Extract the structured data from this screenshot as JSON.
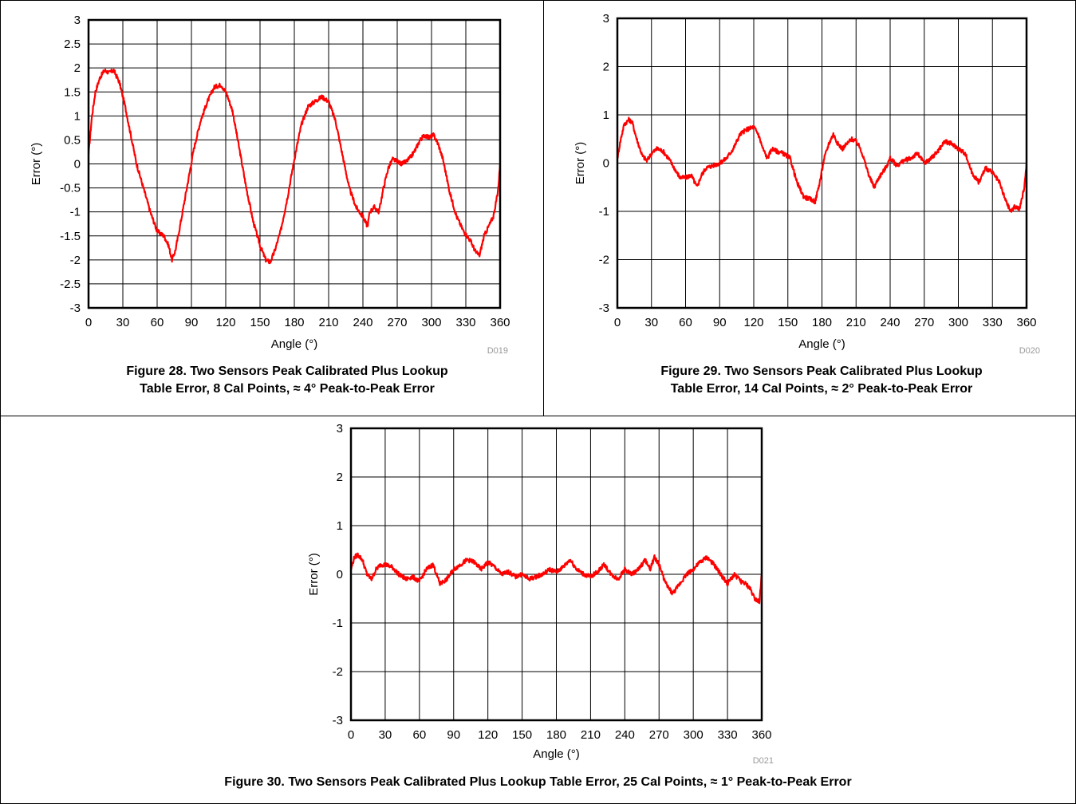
{
  "chart_data": [
    {
      "type": "line",
      "id": "D019",
      "caption_line1": "Figure 28. Two Sensors Peak Calibrated Plus Lookup",
      "caption_line2": "Table Error, 8 Cal Points, ≈ 4° Peak-to-Peak Error",
      "xlabel": "Angle (°)",
      "ylabel": "Error (°)",
      "xlim": [
        0,
        360
      ],
      "ylim": [
        -3,
        3
      ],
      "xticks": [
        "0",
        "30",
        "60",
        "90",
        "120",
        "150",
        "180",
        "210",
        "240",
        "270",
        "300",
        "330",
        "360"
      ],
      "yticks": [
        "3",
        "2.5",
        "2",
        "1.5",
        "1",
        "0.5",
        "0",
        "-0.5",
        "-1",
        "-1.5",
        "-2",
        "-2.5",
        "-3"
      ],
      "grid": true,
      "series_color": "#ff0000",
      "x": [
        0,
        3,
        6,
        10,
        14,
        18,
        22,
        27,
        32,
        37,
        42,
        48,
        54,
        60,
        66,
        70,
        73,
        76,
        80,
        86,
        92,
        98,
        104,
        110,
        116,
        121,
        126,
        132,
        138,
        144,
        150,
        155,
        159,
        163,
        168,
        174,
        180,
        186,
        192,
        198,
        204,
        210,
        216,
        222,
        228,
        234,
        240,
        244,
        246,
        250,
        254,
        258,
        262,
        266,
        270,
        274,
        278,
        282,
        286,
        290,
        294,
        298,
        302,
        306,
        310,
        316,
        322,
        328,
        334,
        339,
        342,
        346,
        350,
        354,
        358,
        360
      ],
      "y": [
        0.2,
        1.0,
        1.5,
        1.8,
        1.95,
        1.9,
        1.95,
        1.7,
        1.2,
        0.6,
        0.0,
        -0.5,
        -1.0,
        -1.4,
        -1.5,
        -1.7,
        -2.0,
        -1.8,
        -1.3,
        -0.5,
        0.3,
        0.9,
        1.3,
        1.6,
        1.65,
        1.45,
        1.1,
        0.3,
        -0.5,
        -1.2,
        -1.7,
        -2.0,
        -2.05,
        -1.8,
        -1.4,
        -0.7,
        0.1,
        0.8,
        1.2,
        1.3,
        1.4,
        1.3,
        0.9,
        0.2,
        -0.5,
        -0.9,
        -1.1,
        -1.3,
        -1.0,
        -0.9,
        -1.0,
        -0.5,
        -0.1,
        0.1,
        0.05,
        0.0,
        0.05,
        0.15,
        0.3,
        0.5,
        0.6,
        0.55,
        0.6,
        0.4,
        0.1,
        -0.6,
        -1.1,
        -1.4,
        -1.6,
        -1.85,
        -1.9,
        -1.5,
        -1.3,
        -1.1,
        -0.6,
        0.0
      ]
    },
    {
      "type": "line",
      "id": "D020",
      "caption_line1": "Figure 29. Two Sensors Peak Calibrated Plus Lookup",
      "caption_line2": "Table Error, 14 Cal Points, ≈ 2° Peak-to-Peak Error",
      "xlabel": "Angle (°)",
      "ylabel": "Error (°)",
      "xlim": [
        0,
        360
      ],
      "ylim": [
        -3,
        3
      ],
      "xticks": [
        "0",
        "30",
        "60",
        "90",
        "120",
        "150",
        "180",
        "210",
        "240",
        "270",
        "300",
        "330",
        "360"
      ],
      "yticks": [
        "3",
        "2",
        "1",
        "0",
        "-1",
        "-2",
        "-3"
      ],
      "grid": true,
      "series_color": "#ff0000",
      "x": [
        0,
        3,
        6,
        10,
        13,
        17,
        22,
        26,
        30,
        35,
        40,
        45,
        50,
        55,
        60,
        65,
        70,
        74,
        78,
        84,
        90,
        96,
        102,
        108,
        114,
        120,
        124,
        128,
        132,
        136,
        140,
        146,
        152,
        158,
        164,
        170,
        174,
        178,
        182,
        186,
        190,
        194,
        198,
        202,
        206,
        210,
        214,
        218,
        222,
        226,
        230,
        236,
        240,
        246,
        252,
        258,
        264,
        270,
        276,
        282,
        288,
        294,
        300,
        306,
        312,
        318,
        324,
        330,
        336,
        342,
        346,
        350,
        354,
        358,
        360
      ],
      "y": [
        0.1,
        0.5,
        0.8,
        0.9,
        0.85,
        0.5,
        0.15,
        0.05,
        0.2,
        0.3,
        0.25,
        0.1,
        -0.1,
        -0.3,
        -0.3,
        -0.25,
        -0.5,
        -0.25,
        -0.1,
        -0.05,
        0.0,
        0.1,
        0.3,
        0.6,
        0.7,
        0.75,
        0.6,
        0.3,
        0.1,
        0.3,
        0.25,
        0.2,
        0.1,
        -0.4,
        -0.7,
        -0.75,
        -0.8,
        -0.4,
        0.1,
        0.4,
        0.6,
        0.4,
        0.3,
        0.4,
        0.5,
        0.45,
        0.3,
        0.0,
        -0.3,
        -0.5,
        -0.3,
        -0.1,
        0.1,
        -0.05,
        0.05,
        0.1,
        0.2,
        0.0,
        0.1,
        0.25,
        0.45,
        0.4,
        0.3,
        0.2,
        -0.2,
        -0.4,
        -0.1,
        -0.2,
        -0.4,
        -0.8,
        -1.0,
        -0.9,
        -0.95,
        -0.5,
        0.0
      ]
    },
    {
      "type": "line",
      "id": "D021",
      "caption_line1": "Figure 30. Two Sensors Peak Calibrated Plus Lookup Table Error, 25 Cal Points, ≈ 1° Peak-to-Peak Error",
      "caption_line2": "",
      "xlabel": "Angle (°)",
      "ylabel": "Error (°)",
      "xlim": [
        0,
        360
      ],
      "ylim": [
        -3,
        3
      ],
      "xticks": [
        "0",
        "30",
        "60",
        "90",
        "120",
        "150",
        "180",
        "210",
        "240",
        "270",
        "300",
        "330",
        "360"
      ],
      "yticks": [
        "3",
        "2",
        "1",
        "0",
        "-1",
        "-2",
        "-3"
      ],
      "grid": true,
      "series_color": "#ff0000",
      "x": [
        0,
        3,
        6,
        10,
        14,
        18,
        22,
        26,
        30,
        36,
        42,
        48,
        54,
        60,
        66,
        72,
        78,
        84,
        90,
        96,
        102,
        108,
        114,
        120,
        126,
        132,
        138,
        144,
        150,
        156,
        162,
        168,
        174,
        180,
        186,
        192,
        198,
        204,
        210,
        216,
        222,
        228,
        234,
        240,
        246,
        252,
        258,
        262,
        266,
        270,
        276,
        282,
        288,
        294,
        300,
        306,
        312,
        318,
        324,
        330,
        336,
        342,
        346,
        350,
        354,
        358,
        360
      ],
      "y": [
        0.1,
        0.35,
        0.4,
        0.3,
        0.0,
        -0.1,
        0.1,
        0.2,
        0.2,
        0.15,
        0.0,
        -0.1,
        -0.05,
        -0.15,
        0.1,
        0.2,
        -0.2,
        -0.1,
        0.1,
        0.2,
        0.3,
        0.25,
        0.1,
        0.25,
        0.15,
        0.0,
        0.05,
        -0.05,
        0.0,
        -0.1,
        -0.05,
        0.0,
        0.1,
        0.05,
        0.15,
        0.3,
        0.1,
        0.0,
        -0.05,
        0.05,
        0.2,
        0.0,
        -0.1,
        0.1,
        0.0,
        0.1,
        0.3,
        0.1,
        0.35,
        0.2,
        -0.2,
        -0.4,
        -0.2,
        0.0,
        0.1,
        0.25,
        0.35,
        0.2,
        0.0,
        -0.2,
        0.0,
        -0.15,
        -0.2,
        -0.3,
        -0.5,
        -0.55,
        0.0
      ]
    }
  ]
}
